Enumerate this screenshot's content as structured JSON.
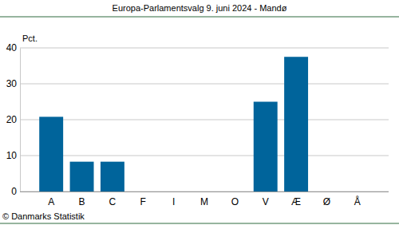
{
  "chart_data": {
    "type": "bar",
    "title": "Europa-Parlamentsvalg 9. juni 2024 - Mandø",
    "y_label": "Pct.",
    "source": "© Danmarks Statistik",
    "categories": [
      "A",
      "B",
      "C",
      "F",
      "I",
      "M",
      "O",
      "V",
      "Æ",
      "Ø",
      "Å"
    ],
    "values": [
      20.8,
      8.3,
      8.3,
      0,
      0,
      0,
      0,
      25,
      37.5,
      0,
      0
    ],
    "color": "#00649b",
    "ylim": [
      0,
      40
    ],
    "yticks": [
      0,
      10,
      20,
      30,
      40
    ],
    "grid": true
  }
}
